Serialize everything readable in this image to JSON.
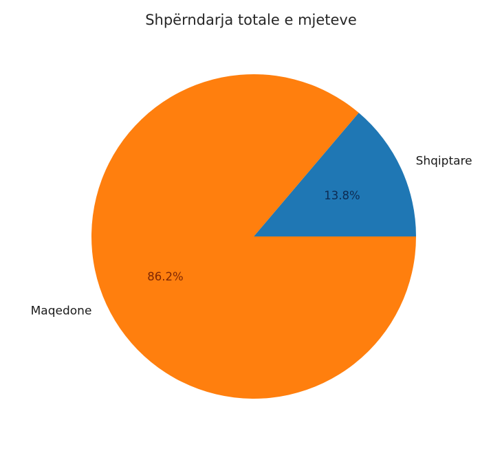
{
  "chart_data": {
    "type": "pie",
    "title": "Shpërndarja totale e mjeteve",
    "labels": [
      "Shqiptare",
      "Maqedone"
    ],
    "values": [
      13.8,
      86.2
    ],
    "autopct": [
      "13.8%",
      "86.2%"
    ],
    "colors": [
      "#1f77b4",
      "#ff7f0e"
    ],
    "pct_label_colors": [
      "#0d2b52",
      "#7f2704"
    ],
    "label_color": "#1a1a1a",
    "title_color": "#262626",
    "background": "#ffffff",
    "start_angle": 0,
    "direction": "counterclockwise",
    "legend": "none",
    "label_distance": 1.1,
    "pct_distance": 0.6
  }
}
